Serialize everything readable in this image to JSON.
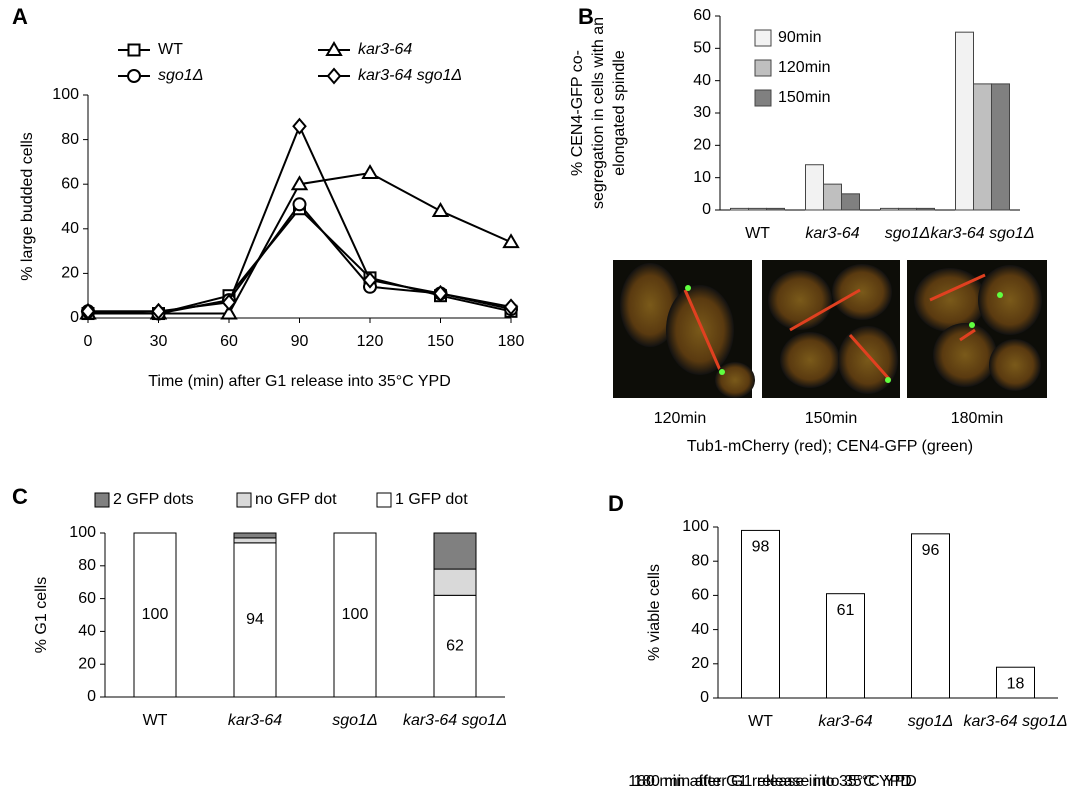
{
  "chart_data": [
    {
      "type": "line",
      "panel": "A",
      "xlabel": "Time (min) after G1 release into 35°C YPD",
      "ylabel": "% large budded cells",
      "x": [
        0,
        30,
        60,
        90,
        120,
        150,
        180
      ],
      "xlim": [
        0,
        180
      ],
      "xticks": [
        0,
        30,
        60,
        90,
        120,
        150,
        180
      ],
      "ylim": [
        0,
        100
      ],
      "yticks": [
        0,
        20,
        40,
        60,
        80,
        100
      ],
      "series": [
        {
          "name": "WT",
          "marker": "square",
          "italic": false,
          "color": "#000000",
          "values": [
            2,
            2,
            10,
            49,
            18,
            10,
            3
          ]
        },
        {
          "name": "kar3-64",
          "marker": "triangle",
          "italic": true,
          "color": "#000000",
          "values": [
            2,
            2,
            2,
            60,
            65,
            48,
            34
          ]
        },
        {
          "name": "sgo1Δ",
          "marker": "circle",
          "italic": true,
          "color": "#000000",
          "values": [
            3,
            2,
            8,
            51,
            14,
            11,
            4
          ]
        },
        {
          "name": "kar3-64 sgo1Δ",
          "marker": "diamond",
          "italic": true,
          "color": "#000000",
          "values": [
            3,
            3,
            7,
            86,
            17,
            11,
            5
          ]
        }
      ]
    },
    {
      "type": "grouped_bar",
      "panel": "B",
      "ylabel": [
        "% CEN4-GFP co-",
        "segregation in cells with an",
        "elongated spindle"
      ],
      "categories": [
        "WT",
        "kar3-64",
        "sgo1Δ",
        "kar3-64 sgo1Δ"
      ],
      "italic_categories": [
        false,
        true,
        true,
        true
      ],
      "ylim": [
        0,
        60
      ],
      "yticks": [
        0,
        10,
        20,
        30,
        40,
        50,
        60
      ],
      "series": [
        {
          "name": "90min",
          "color": "#f2f2f2",
          "values": [
            0.5,
            14,
            0.5,
            55
          ]
        },
        {
          "name": "120min",
          "color": "#bfbfbf",
          "values": [
            0.5,
            8,
            0.5,
            39
          ]
        },
        {
          "name": "150min",
          "color": "#808080",
          "values": [
            0.5,
            5,
            0.5,
            39
          ]
        }
      ],
      "images": {
        "labels": [
          "120min",
          "150min",
          "180min"
        ],
        "caption": "Tub1-mCherry (red); CEN4-GFP (green)"
      }
    },
    {
      "type": "stacked_bar",
      "panel": "C",
      "xlabel": "180 min after G1 release into 35°C YPD",
      "ylabel": "% G1 cells",
      "categories": [
        "WT",
        "kar3-64",
        "sgo1Δ",
        "kar3-64 sgo1Δ"
      ],
      "italic_categories": [
        false,
        true,
        true,
        true
      ],
      "ylim": [
        0,
        100
      ],
      "yticks": [
        0,
        20,
        40,
        60,
        80,
        100
      ],
      "series": [
        {
          "name": "1 GFP dot",
          "color": "#ffffff",
          "show_labels": true,
          "values": [
            100,
            94,
            100,
            62
          ]
        },
        {
          "name": "no GFP dot",
          "color": "#d9d9d9",
          "show_labels": false,
          "values": [
            0,
            3,
            0,
            16
          ]
        },
        {
          "name": "2 GFP dots",
          "color": "#808080",
          "show_labels": false,
          "values": [
            0,
            3,
            0,
            22
          ]
        }
      ]
    },
    {
      "type": "bar",
      "panel": "D",
      "xlabel": "180 min after G1 release into 35°C YPD",
      "ylabel": "% viable cells",
      "categories": [
        "WT",
        "kar3-64",
        "sgo1Δ",
        "kar3-64 sgo1Δ"
      ],
      "italic_categories": [
        false,
        true,
        true,
        true
      ],
      "ylim": [
        0,
        100
      ],
      "yticks": [
        0,
        20,
        40,
        60,
        80,
        100
      ],
      "color": "#ffffff",
      "show_labels": true,
      "values": [
        98,
        61,
        96,
        18
      ]
    }
  ]
}
